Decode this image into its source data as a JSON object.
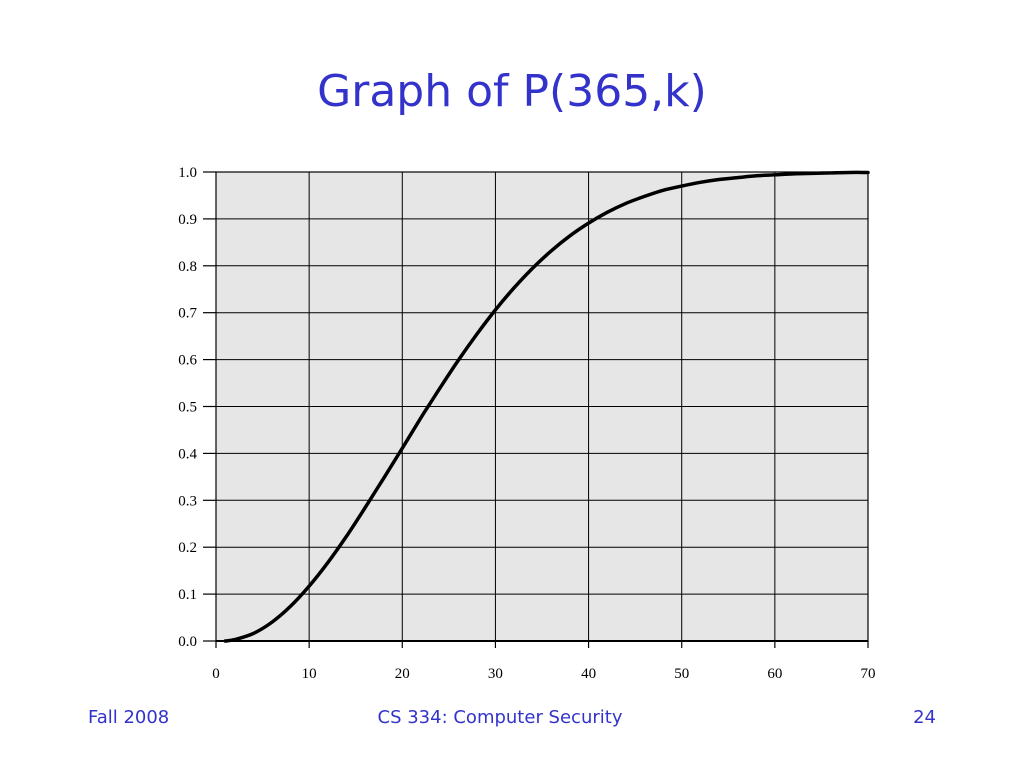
{
  "slide": {
    "title": "Graph of P(365,k)",
    "footer_left": "Fall 2008",
    "footer_center": "CS 334: Computer Security",
    "footer_right": "24"
  },
  "colors": {
    "title": "#3333cc",
    "plot_background": "#e6e6e6",
    "grid": "#000000",
    "curve": "#000000"
  },
  "chart_data": {
    "type": "line",
    "title": "",
    "xlabel": "",
    "ylabel": "",
    "xlim": [
      0,
      70
    ],
    "ylim": [
      0,
      1
    ],
    "grid": true,
    "x_ticks": [
      "0",
      "10",
      "20",
      "30",
      "40",
      "50",
      "60",
      "70"
    ],
    "y_ticks": [
      "0.0",
      "0.1",
      "0.2",
      "0.3",
      "0.4",
      "0.5",
      "0.6",
      "0.7",
      "0.8",
      "0.9",
      "1.0"
    ],
    "series": [
      {
        "x": [
          1,
          2,
          4,
          6,
          8,
          10,
          12,
          14,
          16,
          18,
          20,
          22,
          23,
          24,
          26,
          28,
          30,
          32,
          34,
          36,
          38,
          40,
          42,
          44,
          46,
          48,
          50,
          52,
          54,
          56,
          58,
          60,
          62,
          64,
          66,
          68,
          70
        ],
        "values": [
          0.0,
          0.003,
          0.016,
          0.04,
          0.074,
          0.117,
          0.167,
          0.223,
          0.284,
          0.347,
          0.411,
          0.476,
          0.507,
          0.538,
          0.598,
          0.654,
          0.706,
          0.753,
          0.795,
          0.832,
          0.864,
          0.891,
          0.914,
          0.933,
          0.948,
          0.961,
          0.97,
          0.978,
          0.984,
          0.988,
          0.992,
          0.994,
          0.996,
          0.997,
          0.998,
          0.999,
          0.999
        ]
      }
    ]
  }
}
